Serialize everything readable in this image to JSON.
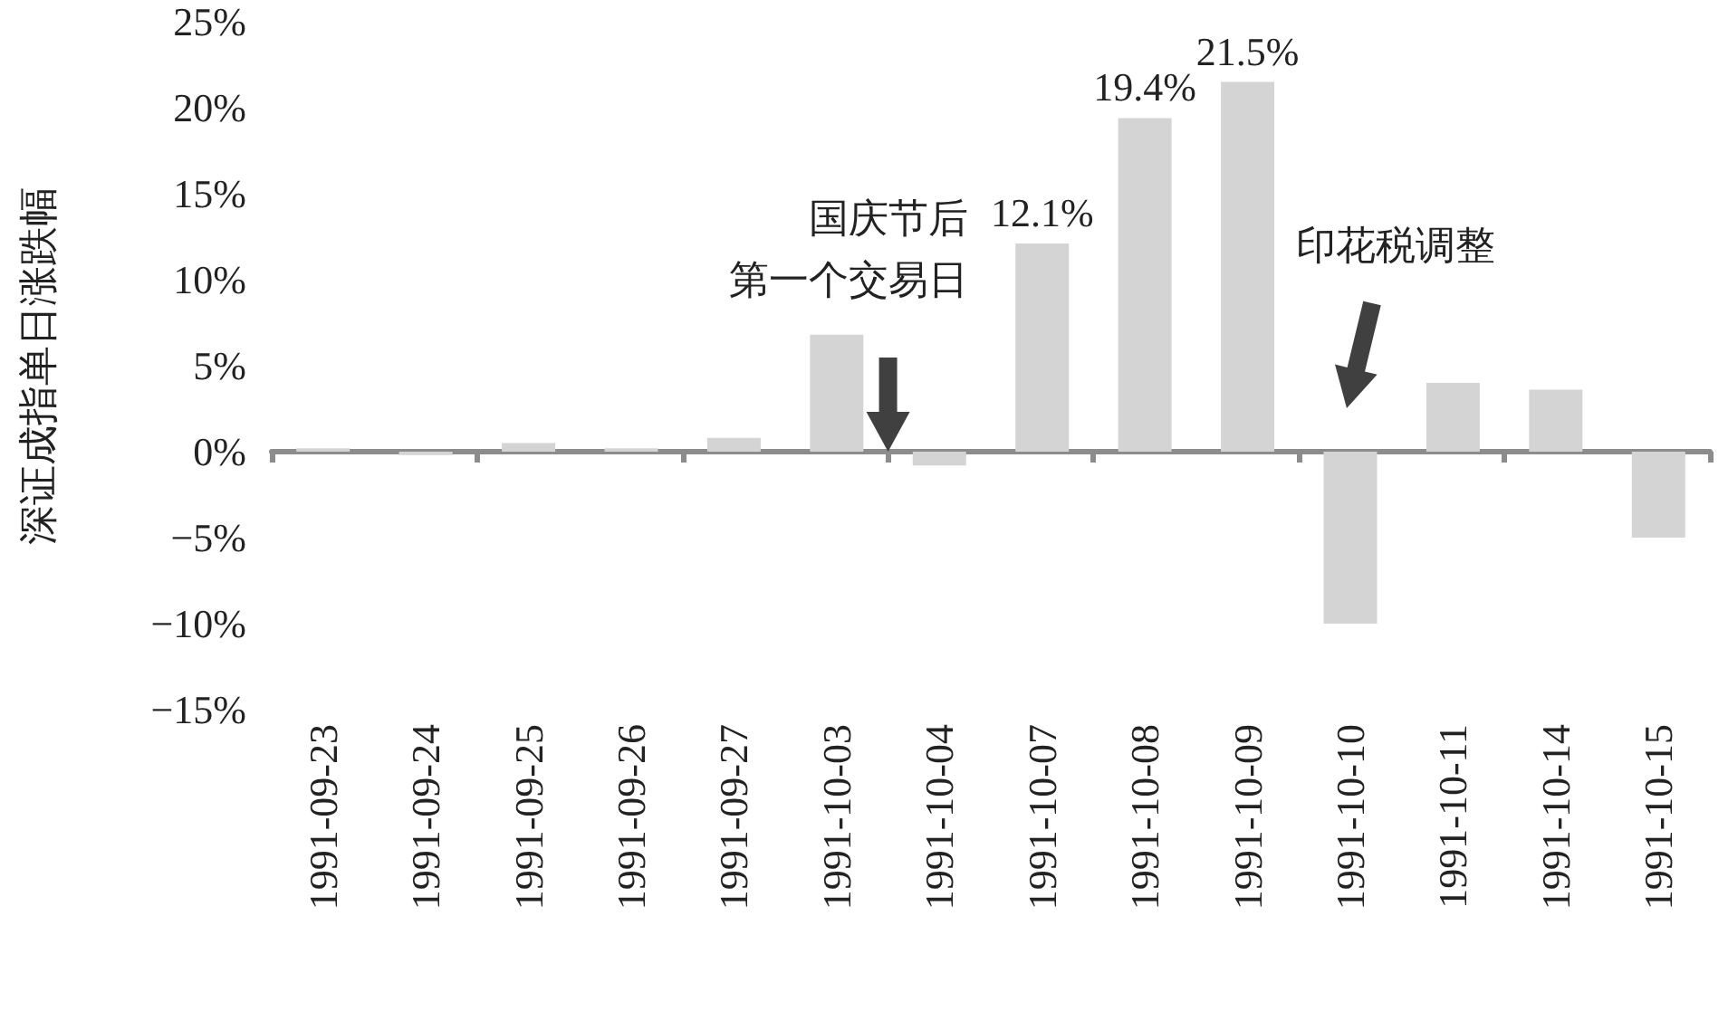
{
  "chart_data": {
    "type": "bar",
    "ylabel": "深证成指单日涨跌幅",
    "categories": [
      "1991-09-23",
      "1991-09-24",
      "1991-09-25",
      "1991-09-26",
      "1991-09-27",
      "1991-10-03",
      "1991-10-04",
      "1991-10-07",
      "1991-10-08",
      "1991-10-09",
      "1991-10-10",
      "1991-10-11",
      "1991-10-14",
      "1991-10-15"
    ],
    "values": [
      0.2,
      -0.2,
      0.5,
      0.2,
      0.8,
      6.8,
      -0.8,
      12.1,
      19.4,
      21.5,
      -10.0,
      4.0,
      3.6,
      -5.0
    ],
    "value_labels": [
      null,
      null,
      null,
      null,
      null,
      null,
      null,
      "12.1%",
      "19.4%",
      "21.5%",
      null,
      null,
      null,
      null
    ],
    "color": "#d4d4d4",
    "ylim": [
      -15,
      25
    ],
    "yticks": [
      {
        "value": -15,
        "label": "−15%"
      },
      {
        "value": -10,
        "label": "−10%"
      },
      {
        "value": -5,
        "label": "−5%"
      },
      {
        "value": 0,
        "label": "0%"
      },
      {
        "value": 5,
        "label": "5%"
      },
      {
        "value": 10,
        "label": "10%"
      },
      {
        "value": 15,
        "label": "15%"
      },
      {
        "value": 20,
        "label": "20%"
      },
      {
        "value": 25,
        "label": "25%"
      }
    ],
    "annotations": [
      "国庆节后",
      "第一个交易日",
      "印花税调整"
    ]
  }
}
